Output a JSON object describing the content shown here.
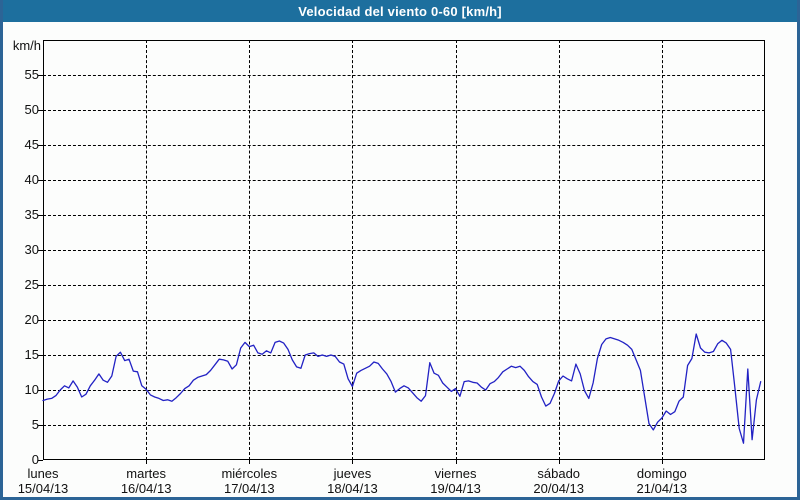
{
  "window": {
    "title": "Velocidad del viento 0-60 [km/h]"
  },
  "colors": {
    "title_bar_bg": "#1d6f9e",
    "title_text": "#ffffff",
    "outer_border": "#2c6496",
    "page_bg": "#fcfdfc",
    "axis_frame": "#000000",
    "grid": "#000000",
    "line": "#2222c4"
  },
  "chart_data": {
    "type": "line",
    "title": "Velocidad del viento 0-60 [km/h]",
    "ylabel": "km/h",
    "ylim": [
      0,
      60
    ],
    "yticks": [
      0,
      5,
      10,
      15,
      20,
      25,
      30,
      35,
      40,
      45,
      50,
      55
    ],
    "grid": "dashed",
    "legend_position": "none",
    "x_axis": {
      "unit": "hours",
      "span_days": 7,
      "hours_total": 168,
      "days": [
        {
          "name": "lunes",
          "date": "15/04/13"
        },
        {
          "name": "martes",
          "date": "16/04/13"
        },
        {
          "name": "miércoles",
          "date": "17/04/13"
        },
        {
          "name": "jueves",
          "date": "18/04/13"
        },
        {
          "name": "viernes",
          "date": "19/04/13"
        },
        {
          "name": "sábado",
          "date": "20/04/13"
        },
        {
          "name": "domingo",
          "date": "21/04/13"
        }
      ]
    },
    "series": [
      {
        "name": "Velocidad del viento",
        "sampling": "hourly",
        "values": [
          8.5,
          8.7,
          8.8,
          9.2,
          10.0,
          10.6,
          10.3,
          11.3,
          10.4,
          9.0,
          9.4,
          10.6,
          11.4,
          12.3,
          11.4,
          11.1,
          12.0,
          14.8,
          15.4,
          14.2,
          14.4,
          12.7,
          12.6,
          10.6,
          10.1,
          9.3,
          9.0,
          8.8,
          8.5,
          8.6,
          8.4,
          8.9,
          9.5,
          10.2,
          10.6,
          11.4,
          11.8,
          12.0,
          12.2,
          12.8,
          13.6,
          14.4,
          14.3,
          14.1,
          13.0,
          13.6,
          16.0,
          16.8,
          16.2,
          16.4,
          15.3,
          15.1,
          15.6,
          15.3,
          16.8,
          17.0,
          16.7,
          15.8,
          14.3,
          13.3,
          13.1,
          15.0,
          15.2,
          15.3,
          14.8,
          15.0,
          14.8,
          15.0,
          14.8,
          14.0,
          13.7,
          11.6,
          10.5,
          12.4,
          12.8,
          13.1,
          13.4,
          14.0,
          13.8,
          13.0,
          12.3,
          11.2,
          9.7,
          10.2,
          10.6,
          10.3,
          9.6,
          8.9,
          8.4,
          9.2,
          13.9,
          12.4,
          12.1,
          11.0,
          10.4,
          9.8,
          10.2,
          9.1,
          11.2,
          11.3,
          11.1,
          11.0,
          10.4,
          10.0,
          10.9,
          11.2,
          11.8,
          12.6,
          13.0,
          13.4,
          13.2,
          13.4,
          12.8,
          11.9,
          11.2,
          10.8,
          9.0,
          7.7,
          8.1,
          9.5,
          11.3,
          12.0,
          11.6,
          11.3,
          13.7,
          12.3,
          9.9,
          8.8,
          11.0,
          14.5,
          16.5,
          17.3,
          17.5,
          17.3,
          17.1,
          16.8,
          16.4,
          15.8,
          14.3,
          12.8,
          9.0,
          5.2,
          4.3,
          5.4,
          6.0,
          7.0,
          6.5,
          6.9,
          8.4,
          9.0,
          13.5,
          14.5,
          18.0,
          16.0,
          15.4,
          15.3,
          15.5,
          16.6,
          17.1,
          16.7,
          15.8,
          10.3,
          4.5,
          2.4,
          13.0,
          2.9,
          8.6,
          11.2
        ]
      }
    ]
  }
}
